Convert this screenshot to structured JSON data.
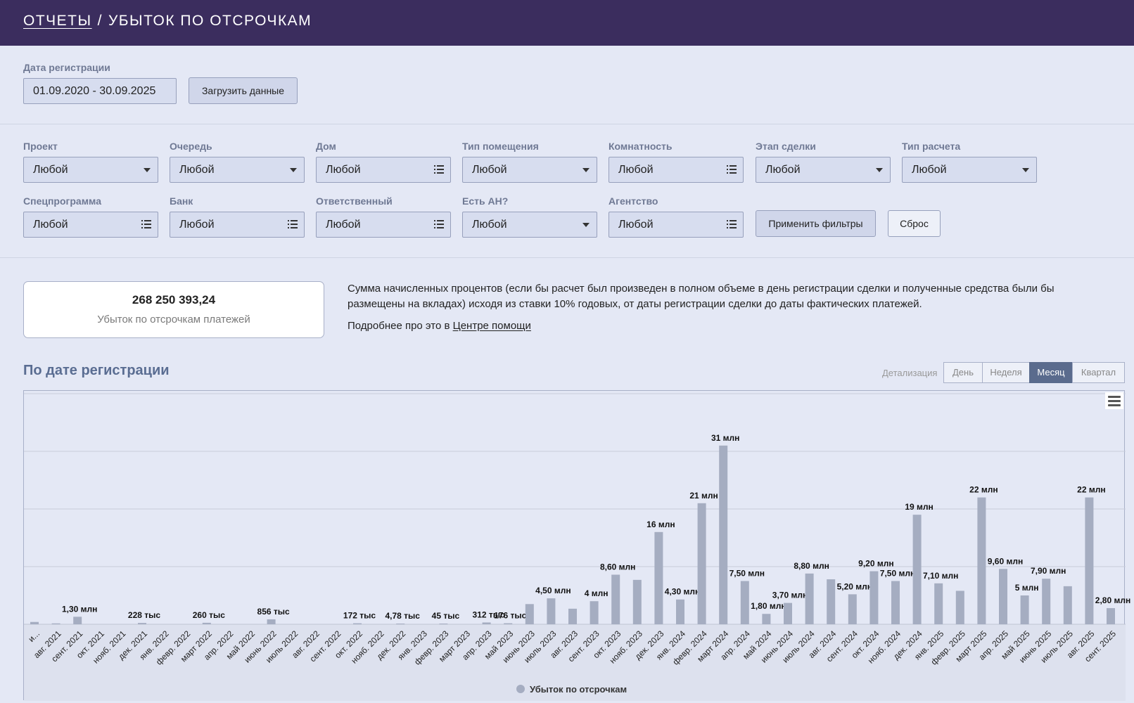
{
  "header": {
    "crumb_link": "ОТЧЕТЫ",
    "separator": "/",
    "title": "УБЫТОК ПО ОТСРОЧКАМ"
  },
  "date_filter": {
    "label": "Дата регистрации",
    "value": "01.09.2020 - 30.09.2025",
    "load_button": "Загрузить данные"
  },
  "filters": [
    {
      "label": "Проект",
      "value": "Любой",
      "type": "dropdown"
    },
    {
      "label": "Очередь",
      "value": "Любой",
      "type": "dropdown"
    },
    {
      "label": "Дом",
      "value": "Любой",
      "type": "list"
    },
    {
      "label": "Тип помещения",
      "value": "Любой",
      "type": "dropdown"
    },
    {
      "label": "Комнатность",
      "value": "Любой",
      "type": "list"
    },
    {
      "label": "Этап сделки",
      "value": "Любой",
      "type": "dropdown"
    },
    {
      "label": "Тип расчета",
      "value": "Любой",
      "type": "dropdown"
    },
    {
      "label": "Спецпрограмма",
      "value": "Любой",
      "type": "list"
    },
    {
      "label": "Банк",
      "value": "Любой",
      "type": "list"
    },
    {
      "label": "Ответственный",
      "value": "Любой",
      "type": "list"
    },
    {
      "label": "Есть АН?",
      "value": "Любой",
      "type": "dropdown"
    },
    {
      "label": "Агентство",
      "value": "Любой",
      "type": "list"
    }
  ],
  "filter_actions": {
    "apply": "Применить фильтры",
    "reset": "Сброс"
  },
  "summary": {
    "value": "268 250 393,24",
    "label": "Убыток по отсрочкам платежей",
    "description": "Сумма начисленных процентов (если бы расчет был произведен в полном объеме в день регистрации сделки и полученные средства были бы размещены на вкладах) исходя из ставки 10% годовых, от даты регистрации сделки до даты фактических платежей.",
    "help_prefix": "Подробнее про это в",
    "help_link": "Центре помощи"
  },
  "chart_section": {
    "title": "По дате регистрации",
    "detail_label": "Детализация",
    "detail_options": [
      "День",
      "Неделя",
      "Месяц",
      "Квартал"
    ],
    "detail_selected": "Месяц"
  },
  "chart_data": {
    "type": "bar",
    "title": "",
    "legend": "Убыток по отсрочкам",
    "legend_position": "bottom-center",
    "grid": true,
    "ylim": [
      0,
      40000000
    ],
    "bar_color": "#a5adc1",
    "categories": [
      "и...",
      "авг. 2021",
      "сент. 2021",
      "окт. 2021",
      "нояб. 2021",
      "дек. 2021",
      "янв. 2022",
      "февр. 2022",
      "март 2022",
      "апр. 2022",
      "май 2022",
      "июнь 2022",
      "июль 2022",
      "авг. 2022",
      "сент. 2022",
      "окт. 2022",
      "нояб. 2022",
      "дек. 2022",
      "янв. 2023",
      "февр. 2023",
      "март 2023",
      "апр. 2023",
      "май 2023",
      "июнь 2023",
      "июль 2023",
      "авг. 2023",
      "сент. 2023",
      "окт. 2023",
      "нояб. 2023",
      "дек. 2023",
      "янв. 2024",
      "февр. 2024",
      "март 2024",
      "апр. 2024",
      "май 2024",
      "июнь 2024",
      "июль 2024",
      "авг. 2024",
      "сент. 2024",
      "окт. 2024",
      "нояб. 2024",
      "дек. 2024",
      "янв. 2025",
      "февр. 2025",
      "март 2025",
      "апр. 2025",
      "май 2025",
      "июнь 2025",
      "июль 2025",
      "авг. 2025",
      "сент. 2025"
    ],
    "values": [
      400000,
      150000,
      1300000,
      0,
      0,
      228000,
      0,
      0,
      260000,
      0,
      0,
      856000,
      0,
      0,
      0,
      172000,
      0,
      4780,
      0,
      45000,
      0,
      312000,
      176000,
      3500000,
      4500000,
      2700000,
      4000000,
      8600000,
      7700000,
      16000000,
      4300000,
      21000000,
      31000000,
      7500000,
      1800000,
      3700000,
      8800000,
      7800000,
      5200000,
      9200000,
      7500000,
      19000000,
      7100000,
      5800000,
      22000000,
      9600000,
      5000000,
      7900000,
      6600000,
      22000000,
      2800000
    ],
    "data_labels": [
      null,
      null,
      "1,30 млн",
      null,
      null,
      "228 тыс",
      null,
      null,
      "260 тыс",
      null,
      null,
      "856 тыс",
      null,
      null,
      null,
      "172 тыс",
      null,
      "4,78 тыс",
      null,
      "45 тыс",
      null,
      "312 тыс",
      "176 тыс",
      null,
      "4,50 млн",
      null,
      "4 млн",
      "8,60 млн",
      null,
      "16 млн",
      "4,30 млн",
      "21 млн",
      "31 млн",
      "7,50 млн",
      "1,80 млн",
      "3,70 млн",
      "8,80 млн",
      null,
      "5,20 млн",
      "9,20 млн",
      "7,50 млн",
      "19 млн",
      "7,10 млн",
      null,
      "22 млн",
      "9,60 млн",
      "5 млн",
      "7,90 млн",
      null,
      "22 млн",
      "2,80 млн"
    ]
  }
}
